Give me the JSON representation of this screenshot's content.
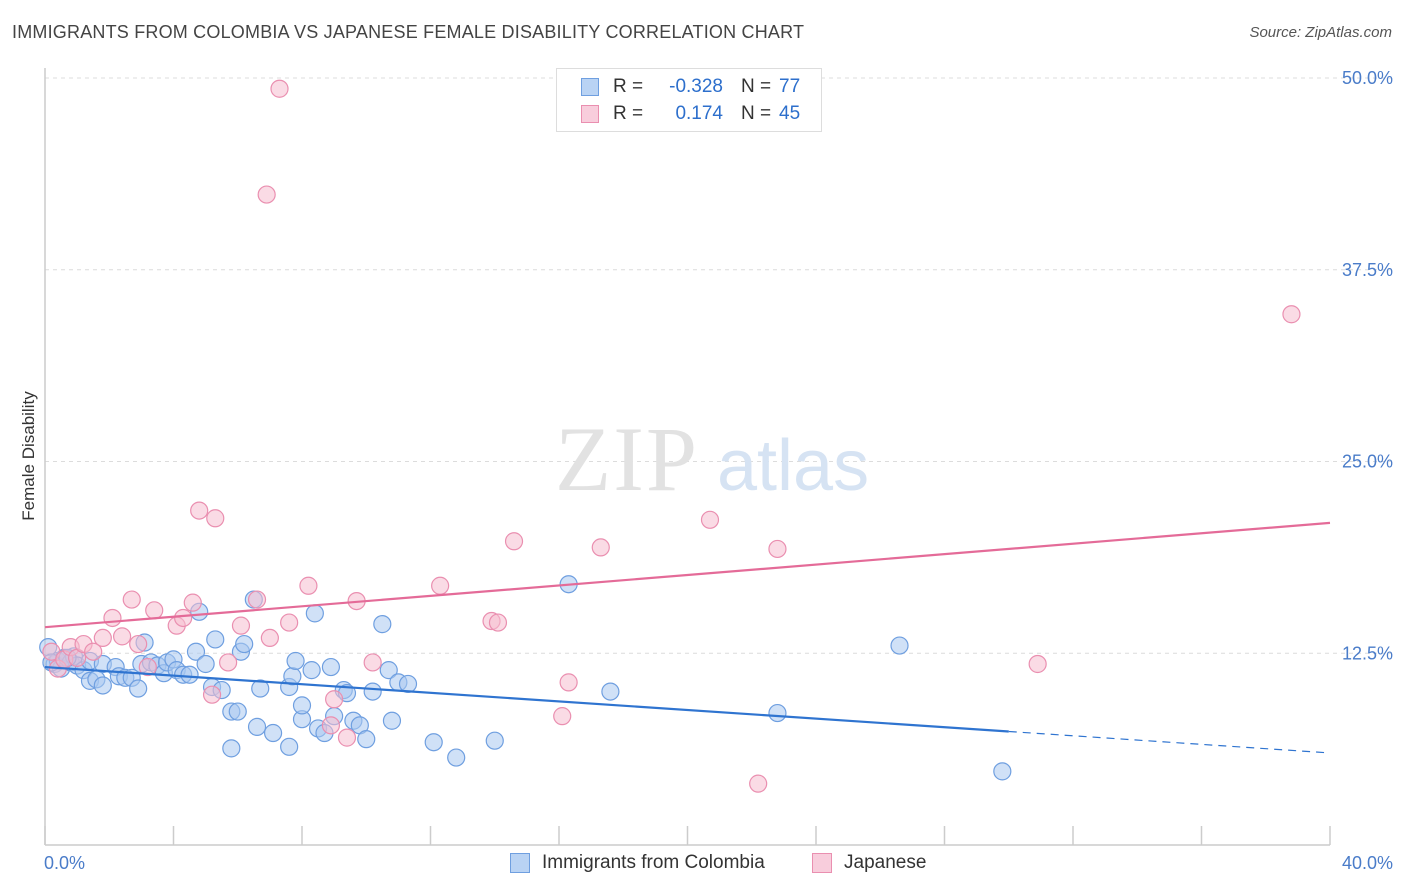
{
  "title": "IMMIGRANTS FROM COLOMBIA VS JAPANESE FEMALE DISABILITY CORRELATION CHART",
  "source": "Source: ZipAtlas.com",
  "watermark": {
    "zip": "ZIP",
    "atlas": "atlas"
  },
  "legend": {
    "series1": {
      "r_label": "R =",
      "r_value": "-0.328",
      "n_label": "N =",
      "n_value": "77"
    },
    "series2": {
      "r_label": "R =",
      "r_value": "0.174",
      "n_label": "N =",
      "n_value": "45"
    }
  },
  "colors": {
    "blue_fill": "#a9c8f0",
    "blue_stroke": "#6f9fe0",
    "blue_line": "#2f74d0",
    "pink_fill": "#f6bdd0",
    "pink_stroke": "#ea8fb0",
    "pink_line": "#e46b98",
    "tick_text": "#4a7cc9"
  },
  "chart_data": {
    "type": "scatter",
    "title": "IMMIGRANTS FROM COLOMBIA VS JAPANESE FEMALE DISABILITY CORRELATION CHART",
    "xlabel": "",
    "ylabel": "Female Disability",
    "xlim": [
      0,
      40
    ],
    "ylim": [
      0,
      50
    ],
    "x_tick_labels": [
      "0.0%",
      "40.0%"
    ],
    "y_ticks": [
      12.5,
      25.0,
      37.5,
      50.0
    ],
    "y_tick_labels": [
      "12.5%",
      "25.0%",
      "37.5%",
      "50.0%"
    ],
    "grid": true,
    "legend_position": "top-center",
    "series": [
      {
        "name": "Immigrants from Colombia",
        "color": "#a9c8f0",
        "trend": {
          "x": [
            0,
            30,
            40
          ],
          "y": [
            11.6,
            7.4,
            6.0
          ],
          "solid_until": 30
        },
        "points": [
          [
            0.1,
            12.9
          ],
          [
            0.3,
            11.8
          ],
          [
            0.4,
            12.0
          ],
          [
            0.5,
            11.5
          ],
          [
            0.6,
            12.2
          ],
          [
            0.8,
            11.9
          ],
          [
            0.9,
            12.3
          ],
          [
            1.0,
            11.7
          ],
          [
            1.2,
            11.4
          ],
          [
            1.4,
            12.0
          ],
          [
            1.4,
            10.7
          ],
          [
            1.6,
            10.8
          ],
          [
            1.8,
            10.4
          ],
          [
            1.8,
            11.8
          ],
          [
            2.2,
            11.6
          ],
          [
            2.3,
            11.0
          ],
          [
            2.5,
            10.9
          ],
          [
            2.7,
            10.9
          ],
          [
            2.9,
            10.2
          ],
          [
            3.0,
            11.8
          ],
          [
            3.1,
            13.2
          ],
          [
            3.3,
            11.9
          ],
          [
            3.5,
            11.7
          ],
          [
            3.7,
            11.2
          ],
          [
            3.8,
            11.9
          ],
          [
            4.0,
            12.1
          ],
          [
            4.1,
            11.4
          ],
          [
            4.3,
            11.1
          ],
          [
            4.5,
            11.1
          ],
          [
            4.7,
            12.6
          ],
          [
            4.8,
            15.2
          ],
          [
            5.0,
            11.8
          ],
          [
            5.2,
            10.3
          ],
          [
            5.3,
            13.4
          ],
          [
            5.5,
            10.1
          ],
          [
            5.8,
            8.7
          ],
          [
            5.8,
            6.3
          ],
          [
            6.0,
            8.7
          ],
          [
            6.1,
            12.6
          ],
          [
            6.2,
            13.1
          ],
          [
            6.5,
            16.0
          ],
          [
            6.6,
            7.7
          ],
          [
            6.7,
            10.2
          ],
          [
            7.1,
            7.3
          ],
          [
            7.6,
            6.4
          ],
          [
            7.6,
            10.3
          ],
          [
            7.7,
            11.0
          ],
          [
            7.8,
            12.0
          ],
          [
            8.0,
            8.2
          ],
          [
            8.0,
            9.1
          ],
          [
            8.3,
            11.4
          ],
          [
            8.4,
            15.1
          ],
          [
            8.5,
            7.6
          ],
          [
            8.7,
            7.3
          ],
          [
            8.9,
            11.6
          ],
          [
            9.0,
            8.4
          ],
          [
            9.3,
            10.1
          ],
          [
            9.4,
            9.9
          ],
          [
            9.6,
            8.1
          ],
          [
            9.8,
            7.8
          ],
          [
            10.0,
            6.9
          ],
          [
            10.2,
            10.0
          ],
          [
            10.5,
            14.4
          ],
          [
            10.7,
            11.4
          ],
          [
            10.8,
            8.1
          ],
          [
            11.0,
            10.6
          ],
          [
            11.3,
            10.5
          ],
          [
            12.1,
            6.7
          ],
          [
            12.8,
            5.7
          ],
          [
            14.0,
            6.8
          ],
          [
            16.3,
            17.0
          ],
          [
            17.6,
            10.0
          ],
          [
            22.8,
            8.6
          ],
          [
            26.6,
            13.0
          ],
          [
            29.8,
            4.8
          ],
          [
            0.2,
            11.9
          ],
          [
            0.7,
            12.2
          ]
        ]
      },
      {
        "name": "Japanese",
        "color": "#f6bdd0",
        "trend": {
          "x": [
            0,
            40
          ],
          "y": [
            14.2,
            21.0
          ]
        },
        "points": [
          [
            0.2,
            12.6
          ],
          [
            0.4,
            11.5
          ],
          [
            0.6,
            12.1
          ],
          [
            0.8,
            12.9
          ],
          [
            1.0,
            12.2
          ],
          [
            1.2,
            13.1
          ],
          [
            1.5,
            12.6
          ],
          [
            1.8,
            13.5
          ],
          [
            2.1,
            14.8
          ],
          [
            2.4,
            13.6
          ],
          [
            2.7,
            16.0
          ],
          [
            2.9,
            13.1
          ],
          [
            3.2,
            11.6
          ],
          [
            3.4,
            15.3
          ],
          [
            4.1,
            14.3
          ],
          [
            4.3,
            14.8
          ],
          [
            4.6,
            15.8
          ],
          [
            4.8,
            21.8
          ],
          [
            5.2,
            9.8
          ],
          [
            5.3,
            21.3
          ],
          [
            5.7,
            11.9
          ],
          [
            6.1,
            14.3
          ],
          [
            6.6,
            16.0
          ],
          [
            7.0,
            13.5
          ],
          [
            7.3,
            49.3
          ],
          [
            7.6,
            14.5
          ],
          [
            6.9,
            42.4
          ],
          [
            8.2,
            16.9
          ],
          [
            8.9,
            7.8
          ],
          [
            9.0,
            9.5
          ],
          [
            9.4,
            7.0
          ],
          [
            9.7,
            15.9
          ],
          [
            10.2,
            11.9
          ],
          [
            12.3,
            16.9
          ],
          [
            13.9,
            14.6
          ],
          [
            14.1,
            14.5
          ],
          [
            14.6,
            19.8
          ],
          [
            16.1,
            8.4
          ],
          [
            16.3,
            10.6
          ],
          [
            17.3,
            19.4
          ],
          [
            20.7,
            21.2
          ],
          [
            22.2,
            4.0
          ],
          [
            22.8,
            19.3
          ],
          [
            30.9,
            11.8
          ],
          [
            38.8,
            34.6
          ]
        ]
      }
    ]
  },
  "bottom_legend": {
    "item1": "Immigrants from Colombia",
    "item2": "Japanese"
  }
}
